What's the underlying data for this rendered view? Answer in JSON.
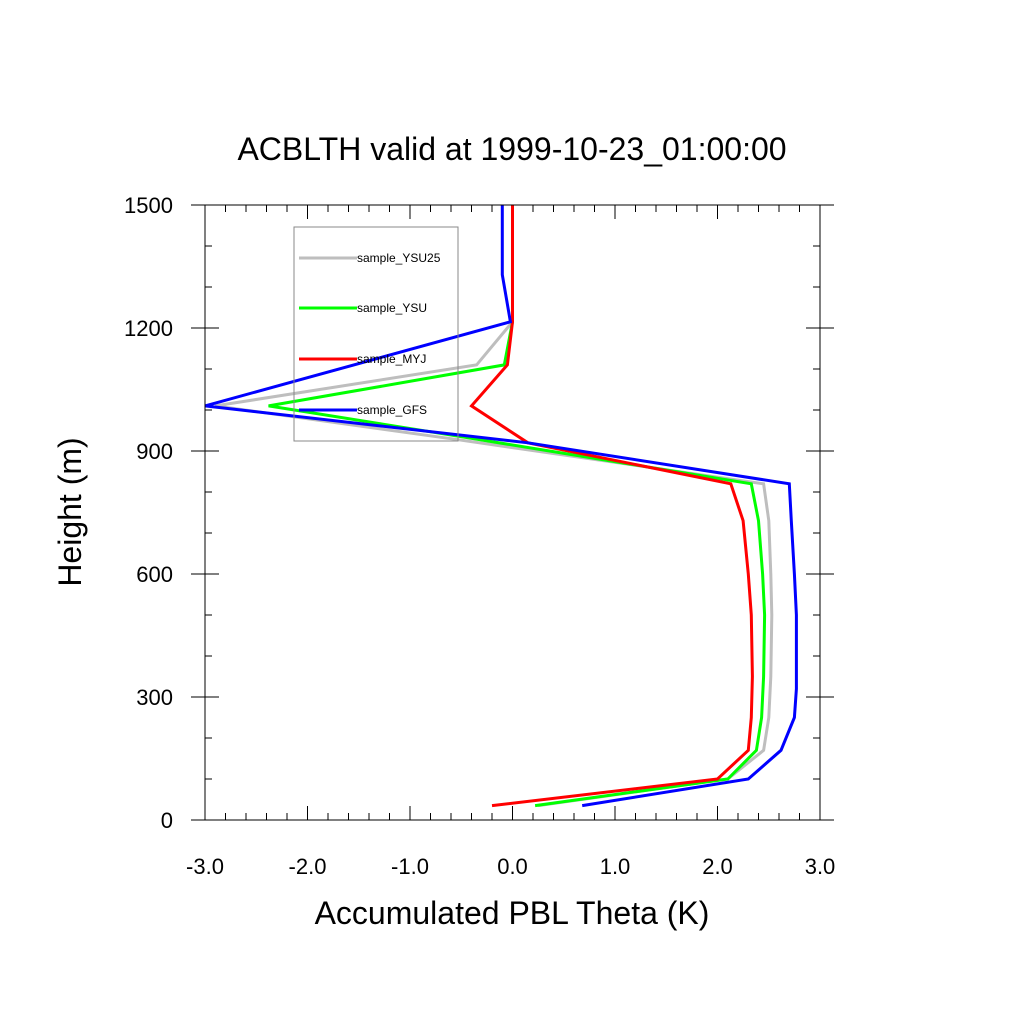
{
  "chart_data": {
    "type": "line",
    "title": "ACBLTH valid at 1999-10-23_01:00:00",
    "xlabel": "Accumulated PBL Theta (K)",
    "ylabel": "Height (m)",
    "xlim": [
      -3.0,
      3.0
    ],
    "ylim": [
      0,
      1500
    ],
    "xticks": [
      "-3.0",
      "-2.0",
      "-1.0",
      "0.0",
      "1.0",
      "2.0",
      "3.0"
    ],
    "yticks": [
      "0",
      "300",
      "600",
      "900",
      "1200",
      "1500"
    ],
    "grid": false,
    "legend_position": "top-left",
    "series": [
      {
        "name": "sample_YSU25",
        "color": "#bebebe",
        "points": [
          [
            0.25,
            35
          ],
          [
            2.1,
            100
          ],
          [
            2.45,
            170
          ],
          [
            2.5,
            250
          ],
          [
            2.52,
            350
          ],
          [
            2.53,
            500
          ],
          [
            2.52,
            600
          ],
          [
            2.5,
            730
          ],
          [
            2.45,
            820
          ],
          [
            -0.6,
            930
          ],
          [
            -2.9,
            1010
          ],
          [
            -0.35,
            1110
          ],
          [
            0.0,
            1215
          ],
          [
            0.0,
            1300
          ],
          [
            0.0,
            1500
          ]
        ]
      },
      {
        "name": "sample_YSU",
        "color": "#00ff00",
        "points": [
          [
            0.22,
            35
          ],
          [
            2.1,
            100
          ],
          [
            2.38,
            170
          ],
          [
            2.43,
            250
          ],
          [
            2.45,
            350
          ],
          [
            2.46,
            500
          ],
          [
            2.44,
            600
          ],
          [
            2.4,
            730
          ],
          [
            2.33,
            820
          ],
          [
            -0.5,
            935
          ],
          [
            -2.38,
            1010
          ],
          [
            -0.08,
            1110
          ],
          [
            0.0,
            1215
          ],
          [
            0.0,
            1300
          ],
          [
            0.0,
            1500
          ]
        ]
      },
      {
        "name": "sample_MYJ",
        "color": "#ff0000",
        "points": [
          [
            -0.2,
            35
          ],
          [
            2.0,
            100
          ],
          [
            2.3,
            170
          ],
          [
            2.33,
            250
          ],
          [
            2.34,
            350
          ],
          [
            2.33,
            500
          ],
          [
            2.3,
            600
          ],
          [
            2.25,
            730
          ],
          [
            2.13,
            820
          ],
          [
            0.15,
            920
          ],
          [
            -0.4,
            1010
          ],
          [
            -0.05,
            1110
          ],
          [
            0.0,
            1215
          ],
          [
            0.0,
            1300
          ],
          [
            0.0,
            1500
          ]
        ]
      },
      {
        "name": "sample_GFS",
        "color": "#0000ff",
        "points": [
          [
            0.68,
            35
          ],
          [
            2.3,
            100
          ],
          [
            2.62,
            170
          ],
          [
            2.75,
            250
          ],
          [
            2.77,
            320
          ],
          [
            2.77,
            500
          ],
          [
            2.75,
            600
          ],
          [
            2.72,
            730
          ],
          [
            2.7,
            820
          ],
          [
            0.15,
            920
          ],
          [
            -3.0,
            1010
          ],
          [
            -0.02,
            1215
          ],
          [
            -0.1,
            1330
          ],
          [
            -0.1,
            1500
          ]
        ]
      }
    ]
  }
}
